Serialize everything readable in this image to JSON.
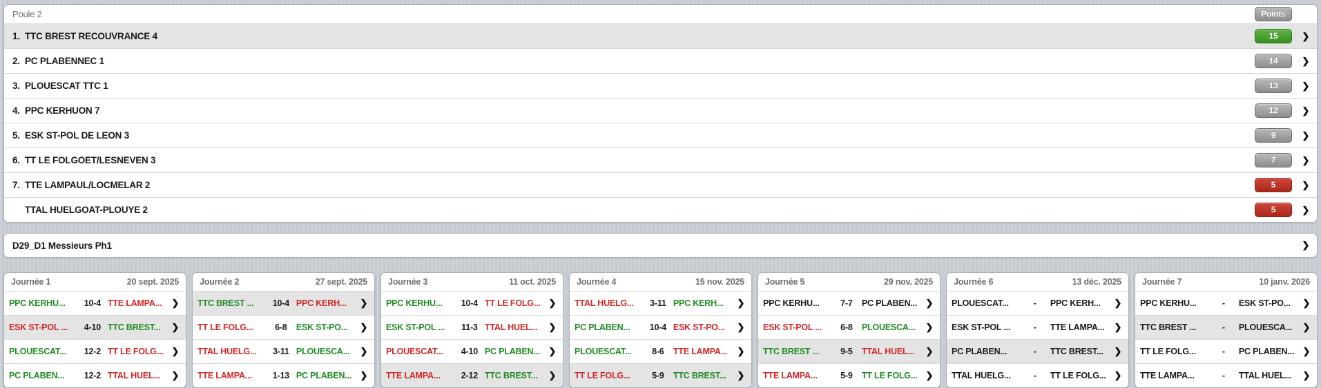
{
  "standings": {
    "title": "Poule 2",
    "points_label": "Points",
    "rows": [
      {
        "rank": "1.",
        "team": "TTC BREST RECOUVRANCE 4",
        "points": "15",
        "badge": "green",
        "highlight": true
      },
      {
        "rank": "2.",
        "team": "PC PLABENNEC 1",
        "points": "14",
        "badge": "gray",
        "highlight": false
      },
      {
        "rank": "3.",
        "team": "PLOUESCAT TTC 1",
        "points": "13",
        "badge": "gray",
        "highlight": false
      },
      {
        "rank": "4.",
        "team": "PPC KERHUON 7",
        "points": "12",
        "badge": "gray",
        "highlight": false
      },
      {
        "rank": "5.",
        "team": "ESK ST-POL DE LEON 3",
        "points": "9",
        "badge": "gray",
        "highlight": false
      },
      {
        "rank": "6.",
        "team": "TT LE FOLGOET/LESNEVEN 3",
        "points": "7",
        "badge": "gray",
        "highlight": false
      },
      {
        "rank": "7.",
        "team": "TTE LAMPAUL/LOCMELAR 2",
        "points": "5",
        "badge": "red",
        "highlight": false
      },
      {
        "rank": "",
        "team": "TTAL HUELGOAT-PLOUYE 2",
        "points": "5",
        "badge": "red",
        "highlight": false
      }
    ]
  },
  "division": {
    "label": "D29_D1 Messieurs Ph1"
  },
  "rounds": [
    {
      "label": "Journée 1",
      "date": "20 sept. 2025",
      "matches": [
        {
          "home": "PPC KERHU...",
          "score": "10-4",
          "away": "TTE LAMPA...",
          "home_res": "w",
          "away_res": "l",
          "highlight": false
        },
        {
          "home": "ESK ST-POL ...",
          "score": "4-10",
          "away": "TTC BREST...",
          "home_res": "l",
          "away_res": "w",
          "highlight": true
        },
        {
          "home": "PLOUESCAT...",
          "score": "12-2",
          "away": "TT LE FOLG...",
          "home_res": "w",
          "away_res": "l",
          "highlight": false
        },
        {
          "home": "PC PLABEN...",
          "score": "12-2",
          "away": "TTAL HUEL...",
          "home_res": "w",
          "away_res": "l",
          "highlight": false
        }
      ]
    },
    {
      "label": "Journée 2",
      "date": "27 sept. 2025",
      "matches": [
        {
          "home": "TTC BREST ...",
          "score": "10-4",
          "away": "PPC KERH...",
          "home_res": "w",
          "away_res": "l",
          "highlight": true
        },
        {
          "home": "TT LE FOLG...",
          "score": "6-8",
          "away": "ESK ST-PO...",
          "home_res": "l",
          "away_res": "w",
          "highlight": false
        },
        {
          "home": "TTAL HUELG...",
          "score": "3-11",
          "away": "PLOUESCA...",
          "home_res": "l",
          "away_res": "w",
          "highlight": false
        },
        {
          "home": "TTE LAMPA...",
          "score": "1-13",
          "away": "PC PLABEN...",
          "home_res": "l",
          "away_res": "w",
          "highlight": false
        }
      ]
    },
    {
      "label": "Journée 3",
      "date": "11 oct. 2025",
      "matches": [
        {
          "home": "PPC KERHU...",
          "score": "10-4",
          "away": "TT LE FOLG...",
          "home_res": "w",
          "away_res": "l",
          "highlight": false
        },
        {
          "home": "ESK ST-POL ...",
          "score": "11-3",
          "away": "TTAL HUEL...",
          "home_res": "w",
          "away_res": "l",
          "highlight": false
        },
        {
          "home": "PLOUESCAT...",
          "score": "4-10",
          "away": "PC PLABEN...",
          "home_res": "l",
          "away_res": "w",
          "highlight": false
        },
        {
          "home": "TTE LAMPA...",
          "score": "2-12",
          "away": "TTC BREST...",
          "home_res": "l",
          "away_res": "w",
          "highlight": true
        }
      ]
    },
    {
      "label": "Journée 4",
      "date": "15 nov. 2025",
      "matches": [
        {
          "home": "TTAL HUELG...",
          "score": "3-11",
          "away": "PPC KERH...",
          "home_res": "l",
          "away_res": "w",
          "highlight": false
        },
        {
          "home": "PC PLABEN...",
          "score": "10-4",
          "away": "ESK ST-PO...",
          "home_res": "w",
          "away_res": "l",
          "highlight": false
        },
        {
          "home": "PLOUESCAT...",
          "score": "8-6",
          "away": "TTE LAMPA...",
          "home_res": "w",
          "away_res": "l",
          "highlight": false
        },
        {
          "home": "TT LE FOLG...",
          "score": "5-9",
          "away": "TTC BREST...",
          "home_res": "l",
          "away_res": "w",
          "highlight": true
        }
      ]
    },
    {
      "label": "Journée 5",
      "date": "29 nov. 2025",
      "matches": [
        {
          "home": "PPC KERHU...",
          "score": "7-7",
          "away": "PC PLABEN...",
          "home_res": "n",
          "away_res": "n",
          "highlight": false
        },
        {
          "home": "ESK ST-POL ...",
          "score": "6-8",
          "away": "PLOUESCA...",
          "home_res": "l",
          "away_res": "w",
          "highlight": false
        },
        {
          "home": "TTC BREST ...",
          "score": "9-5",
          "away": "TTAL HUEL...",
          "home_res": "w",
          "away_res": "l",
          "highlight": true
        },
        {
          "home": "TTE LAMPA...",
          "score": "5-9",
          "away": "TT LE FOLG...",
          "home_res": "l",
          "away_res": "w",
          "highlight": false
        }
      ]
    },
    {
      "label": "Journée 6",
      "date": "13 déc. 2025",
      "matches": [
        {
          "home": "PLOUESCAT...",
          "score": "-",
          "away": "PPC KERH...",
          "home_res": "n",
          "away_res": "n",
          "highlight": false
        },
        {
          "home": "ESK ST-POL ...",
          "score": "-",
          "away": "TTE LAMPA...",
          "home_res": "n",
          "away_res": "n",
          "highlight": false
        },
        {
          "home": "PC PLABEN...",
          "score": "-",
          "away": "TTC BREST...",
          "home_res": "n",
          "away_res": "n",
          "highlight": true
        },
        {
          "home": "TTAL HUELG...",
          "score": "-",
          "away": "TT LE FOLG...",
          "home_res": "n",
          "away_res": "n",
          "highlight": false
        }
      ]
    },
    {
      "label": "Journée 7",
      "date": "10 janv. 2026",
      "matches": [
        {
          "home": "PPC KERHU...",
          "score": "-",
          "away": "ESK ST-PO...",
          "home_res": "n",
          "away_res": "n",
          "highlight": false
        },
        {
          "home": "TTC BREST ...",
          "score": "-",
          "away": "PLOUESCA...",
          "home_res": "n",
          "away_res": "n",
          "highlight": true
        },
        {
          "home": "TT LE FOLG...",
          "score": "-",
          "away": "PC PLABEN...",
          "home_res": "n",
          "away_res": "n",
          "highlight": false
        },
        {
          "home": "TTE LAMPA...",
          "score": "-",
          "away": "TTAL HUEL...",
          "home_res": "n",
          "away_res": "n",
          "highlight": false
        }
      ]
    }
  ],
  "icons": {
    "chevron": "❯"
  },
  "colors": {
    "win_green": "#1f8b24",
    "loss_red": "#cf2727",
    "badge_green": "#3a8f20",
    "badge_red": "#a8281c",
    "badge_gray": "#8d8d8d",
    "row_highlight": "#e4e4e4"
  }
}
